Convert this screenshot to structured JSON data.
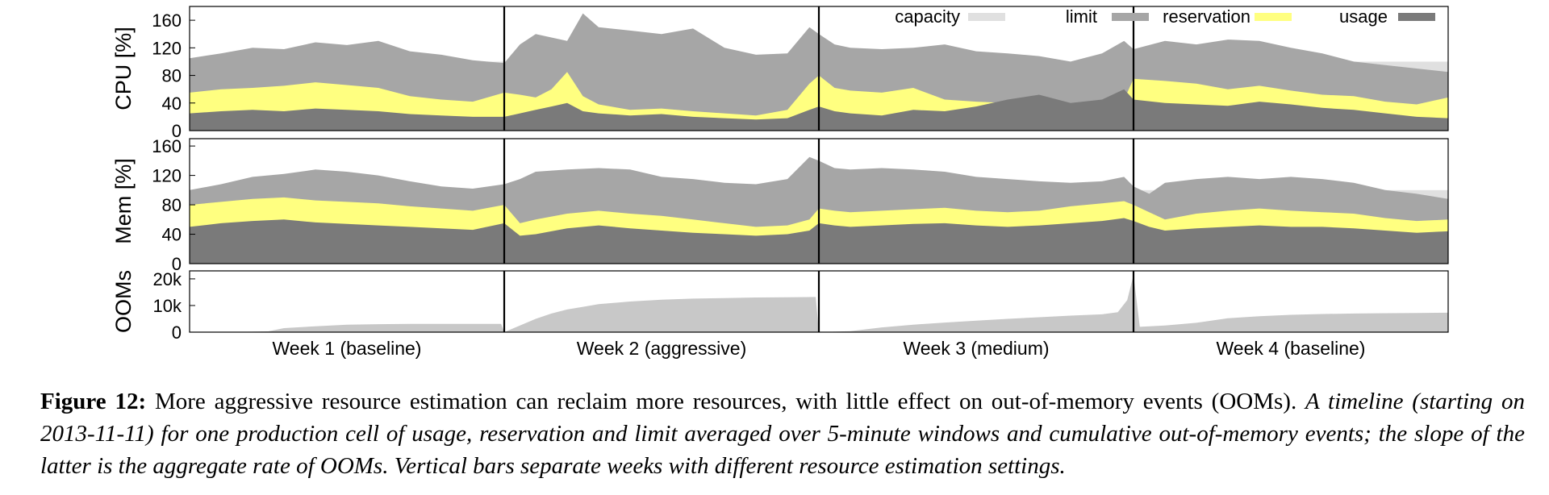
{
  "chart_data": {
    "type": "area",
    "weeks": [
      {
        "label": "Week 1 (baseline)",
        "start": 0,
        "end": 1
      },
      {
        "label": "Week 2 (aggressive)",
        "start": 1,
        "end": 2
      },
      {
        "label": "Week 3 (medium)",
        "start": 2,
        "end": 3
      },
      {
        "label": "Week 4 (baseline)",
        "start": 3,
        "end": 4
      }
    ],
    "legend": [
      {
        "name": "capacity",
        "color": "#e0e0e0"
      },
      {
        "name": "limit",
        "color": "#a6a6a6"
      },
      {
        "name": "reservation",
        "color": "#ffff80"
      },
      {
        "name": "usage",
        "color": "#7a7a7a"
      }
    ],
    "legend_position": "top-right",
    "panels": [
      {
        "id": "cpu",
        "ylabel": "CPU [%]",
        "ylim": [
          0,
          180
        ],
        "yticks": [
          "0",
          "40",
          "80",
          "120",
          "160"
        ],
        "ytick_values": [
          0,
          40,
          80,
          120,
          160
        ],
        "capacity": 100,
        "x": [
          0,
          0.1,
          0.2,
          0.3,
          0.4,
          0.5,
          0.6,
          0.7,
          0.8,
          0.9,
          1.0,
          1.05,
          1.1,
          1.15,
          1.2,
          1.25,
          1.3,
          1.4,
          1.5,
          1.6,
          1.7,
          1.8,
          1.9,
          1.97,
          2.0,
          2.05,
          2.1,
          2.2,
          2.3,
          2.4,
          2.5,
          2.6,
          2.7,
          2.8,
          2.9,
          2.97,
          3.0,
          3.1,
          3.2,
          3.3,
          3.4,
          3.5,
          3.6,
          3.7,
          3.8,
          3.9,
          4.0
        ],
        "series": [
          {
            "name": "limit",
            "values": [
              105,
              112,
              120,
              118,
              128,
              124,
              130,
              115,
              110,
              102,
              98,
              125,
              140,
              135,
              130,
              170,
              150,
              145,
              140,
              148,
              120,
              110,
              112,
              150,
              140,
              125,
              120,
              118,
              120,
              125,
              115,
              112,
              108,
              100,
              112,
              130,
              118,
              130,
              125,
              132,
              130,
              120,
              112,
              100,
              95,
              90,
              85
            ]
          },
          {
            "name": "reservation",
            "values": [
              55,
              60,
              62,
              65,
              70,
              66,
              62,
              50,
              45,
              42,
              55,
              52,
              48,
              60,
              85,
              50,
              38,
              30,
              32,
              28,
              25,
              22,
              30,
              68,
              80,
              62,
              58,
              55,
              62,
              45,
              42,
              40,
              35,
              30,
              28,
              45,
              75,
              72,
              68,
              60,
              65,
              58,
              52,
              50,
              42,
              38,
              48
            ]
          },
          {
            "name": "usage",
            "values": [
              25,
              28,
              30,
              28,
              32,
              30,
              28,
              24,
              22,
              20,
              20,
              25,
              30,
              35,
              40,
              28,
              25,
              22,
              24,
              20,
              18,
              16,
              18,
              30,
              35,
              28,
              25,
              22,
              30,
              28,
              35,
              45,
              52,
              40,
              45,
              60,
              45,
              40,
              38,
              36,
              42,
              38,
              33,
              30,
              25,
              20,
              18
            ]
          }
        ]
      },
      {
        "id": "mem",
        "ylabel": "Mem [%]",
        "ylim": [
          0,
          170
        ],
        "yticks": [
          "0",
          "40",
          "80",
          "120",
          "160"
        ],
        "ytick_values": [
          0,
          40,
          80,
          120,
          160
        ],
        "capacity": 100,
        "x": [
          0,
          0.1,
          0.2,
          0.3,
          0.4,
          0.5,
          0.6,
          0.7,
          0.8,
          0.9,
          1.0,
          1.05,
          1.1,
          1.2,
          1.3,
          1.4,
          1.5,
          1.6,
          1.7,
          1.8,
          1.9,
          1.97,
          2.0,
          2.05,
          2.1,
          2.2,
          2.3,
          2.4,
          2.5,
          2.6,
          2.7,
          2.8,
          2.9,
          2.97,
          3.0,
          3.05,
          3.1,
          3.2,
          3.3,
          3.4,
          3.5,
          3.6,
          3.7,
          3.8,
          3.9,
          4.0
        ],
        "series": [
          {
            "name": "limit",
            "values": [
              100,
              108,
              118,
              122,
              128,
              125,
              120,
              112,
              105,
              102,
              108,
              115,
              125,
              128,
              130,
              128,
              118,
              115,
              110,
              108,
              115,
              145,
              140,
              130,
              128,
              130,
              128,
              125,
              118,
              115,
              112,
              110,
              112,
              118,
              105,
              95,
              110,
              115,
              118,
              115,
              118,
              115,
              110,
              100,
              95,
              88
            ]
          },
          {
            "name": "reservation",
            "values": [
              80,
              84,
              88,
              90,
              86,
              84,
              82,
              78,
              75,
              72,
              80,
              55,
              60,
              68,
              72,
              68,
              65,
              60,
              55,
              50,
              52,
              60,
              75,
              72,
              70,
              72,
              74,
              76,
              72,
              70,
              72,
              78,
              82,
              85,
              80,
              70,
              60,
              68,
              72,
              75,
              72,
              70,
              68,
              62,
              58,
              60
            ]
          },
          {
            "name": "usage",
            "values": [
              50,
              55,
              58,
              60,
              56,
              54,
              52,
              50,
              48,
              46,
              55,
              38,
              40,
              48,
              52,
              48,
              45,
              42,
              40,
              38,
              40,
              45,
              55,
              52,
              50,
              52,
              54,
              55,
              52,
              50,
              52,
              55,
              58,
              62,
              58,
              50,
              45,
              48,
              50,
              52,
              50,
              50,
              48,
              45,
              42,
              44
            ]
          }
        ]
      },
      {
        "id": "ooms",
        "ylabel": "OOMs",
        "ylim": [
          0,
          23000
        ],
        "yticks": [
          "0",
          "10k",
          "20k"
        ],
        "ytick_values": [
          0,
          10000,
          20000
        ],
        "x": [
          0,
          0.15,
          0.25,
          0.3,
          0.4,
          0.5,
          0.6,
          0.7,
          0.8,
          0.9,
          0.99,
          1.0,
          1.05,
          1.1,
          1.15,
          1.2,
          1.25,
          1.3,
          1.4,
          1.5,
          1.6,
          1.7,
          1.8,
          1.9,
          1.99,
          2.0,
          2.1,
          2.2,
          2.3,
          2.4,
          2.5,
          2.6,
          2.7,
          2.8,
          2.9,
          2.95,
          2.98,
          3.0,
          3.02,
          3.1,
          3.2,
          3.3,
          3.4,
          3.5,
          3.6,
          3.7,
          3.8,
          3.9,
          4.0
        ],
        "series": [
          {
            "name": "ooms",
            "values": [
              0,
              100,
              300,
              1500,
              2200,
              2800,
              3000,
              3100,
              3100,
              3100,
              3100,
              0,
              2500,
              5000,
              7000,
              8500,
              9500,
              10500,
              11500,
              12200,
              12600,
              12800,
              13000,
              13100,
              13200,
              0,
              400,
              1800,
              2800,
              3600,
              4300,
              5000,
              5600,
              6200,
              6700,
              7500,
              12000,
              21500,
              2000,
              2500,
              3500,
              5200,
              6000,
              6500,
              6800,
              7000,
              7100,
              7200,
              7300
            ]
          }
        ]
      }
    ]
  },
  "caption": {
    "label": "Figure 12:",
    "text": "More aggressive resource estimation can reclaim more resources, with little effect on out-of-memory events (OOMs).",
    "italic": "A timeline (starting on 2013-11-11) for one production cell of usage, reservation and limit averaged over 5-minute windows and cumulative out-of-memory events; the slope of the latter is the aggregate rate of OOMs. Vertical bars separate weeks with different resource estimation settings."
  }
}
